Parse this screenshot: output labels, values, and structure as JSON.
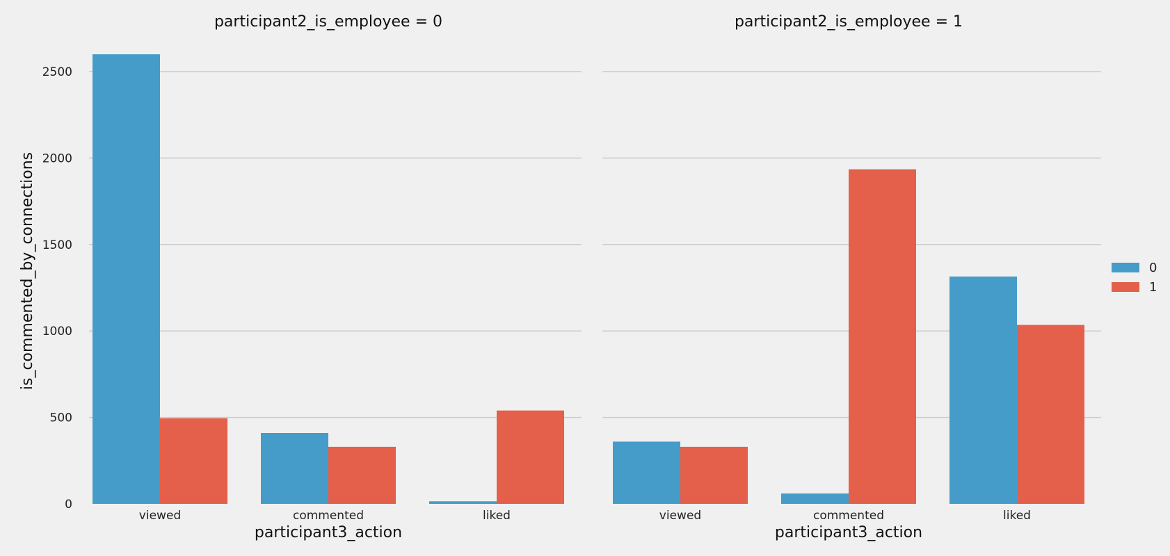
{
  "chart_data": {
    "type": "bar",
    "ylabel": "is_commented_by_connections",
    "ylim": [
      0,
      2700
    ],
    "yticks": [
      0,
      500,
      1000,
      1500,
      2000,
      2500
    ],
    "grid": true,
    "legend": {
      "placement": "right",
      "entries": [
        "0",
        "1"
      ]
    },
    "colors": {
      "background": "#f0f0f0",
      "grid": "#cbcbcb",
      "series": [
        "#459cc9",
        "#e4604a"
      ]
    },
    "panels": [
      {
        "title": "participant2_is_employee = 0",
        "xlabel": "participant3_action",
        "categories": [
          "viewed",
          "commented",
          "liked"
        ],
        "series": [
          {
            "name": "0",
            "values": [
              2600,
              410,
              15
            ]
          },
          {
            "name": "1",
            "values": [
              495,
              330,
              540
            ]
          }
        ]
      },
      {
        "title": "participant2_is_employee = 1",
        "xlabel": "participant3_action",
        "categories": [
          "viewed",
          "commented",
          "liked"
        ],
        "series": [
          {
            "name": "0",
            "values": [
              360,
              60,
              1315
            ]
          },
          {
            "name": "1",
            "values": [
              330,
              1935,
              1035
            ]
          }
        ]
      }
    ]
  }
}
